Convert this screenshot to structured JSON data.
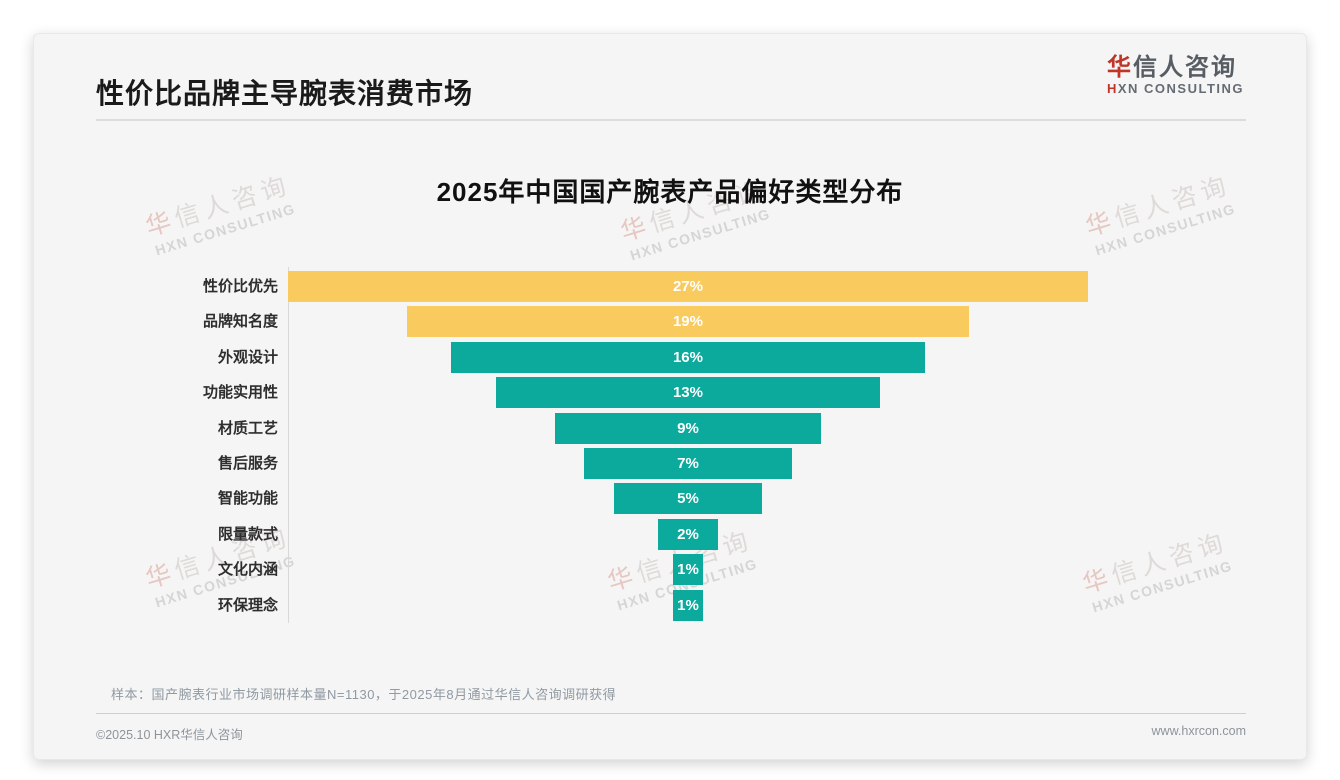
{
  "page": {
    "title": "性价比品牌主导腕表消费市场",
    "logo": {
      "cjk_first": "华",
      "cjk_rest": "信人咨询",
      "latin_first": "H",
      "latin_rest": "XN CONSULTING"
    },
    "watermark": {
      "first_char": "华",
      "rest_chars": "信人咨询",
      "line2": "HXN CONSULTING"
    },
    "note": "样本：国产腕表行业市场调研样本量N=1130，于2025年8月通过华信人咨询调研获得",
    "footer": {
      "left": "©2025.10 HXR华信人咨询",
      "right": "www.hxrcon.com"
    }
  },
  "chart_data": {
    "type": "bar",
    "variant": "centered-funnel",
    "title": "2025年中国国产腕表产品偏好类型分布",
    "categories": [
      "性价比优先",
      "品牌知名度",
      "外观设计",
      "功能实用性",
      "材质工艺",
      "售后服务",
      "智能功能",
      "限量款式",
      "文化内涵",
      "环保理念"
    ],
    "values": [
      27,
      19,
      16,
      13,
      9,
      7,
      5,
      2,
      1,
      1
    ],
    "value_labels": [
      "27%",
      "19%",
      "16%",
      "13%",
      "9%",
      "7%",
      "5%",
      "2%",
      "1%",
      "1%"
    ],
    "xlim": [
      0,
      27
    ],
    "grid": false,
    "legend": "none",
    "colors": {
      "highlight": "#f9cb5f",
      "default": "#0caa9d"
    },
    "highlight_count": 2
  }
}
